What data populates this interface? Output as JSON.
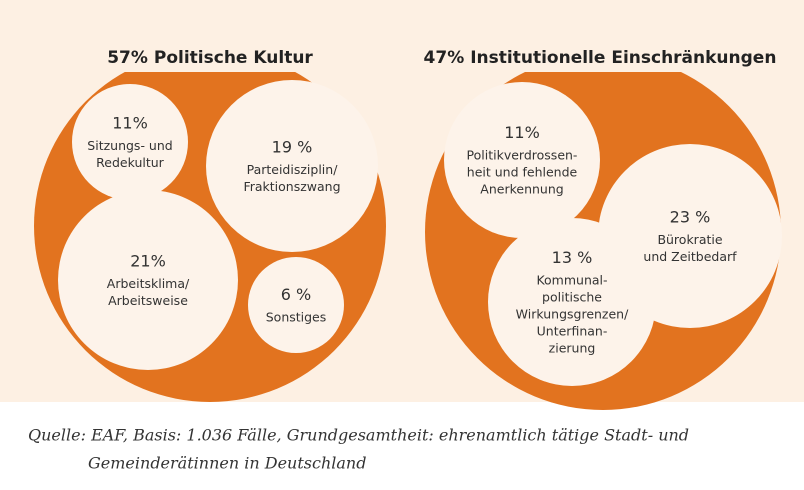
{
  "chart_data": [
    {
      "type": "pack",
      "value": 57,
      "value_label": "57%",
      "title": "Politische Kultur",
      "color": "#e2731f",
      "categories": [
        [
          "Sitzungs- und",
          "Redekultur"
        ],
        [
          "Parteidisziplin/",
          "Fraktionszwang"
        ],
        [
          "Arbeitsklima/",
          "Arbeitsweise"
        ],
        [
          "Sonstiges"
        ]
      ],
      "values": [
        11,
        19,
        21,
        6
      ],
      "value_labels": [
        "11%",
        "19 %",
        "21%",
        "6 %"
      ]
    },
    {
      "type": "pack",
      "value": 47,
      "value_label": "47%",
      "title": "Institutionelle Einschränkungen",
      "color": "#e2731f",
      "categories": [
        [
          "Politikverdrossen-",
          "heit und fehlende",
          "Anerkennung"
        ],
        [
          "Bürokratie",
          "und Zeitbedarf"
        ],
        [
          "Kommunal-",
          "politische",
          "Wirkungsgrenzen/",
          "Unterfinan-",
          "zierung"
        ]
      ],
      "values": [
        11,
        23,
        13
      ],
      "value_labels": [
        "11%",
        "23 %",
        "13 %"
      ]
    }
  ],
  "source": [
    "Quelle: EAF, Basis: 1.036 Fälle, Grundgesamtheit: ehrenamtlich tätige Stadt- und",
    "Gemeinderätinnen in Deutschland"
  ]
}
